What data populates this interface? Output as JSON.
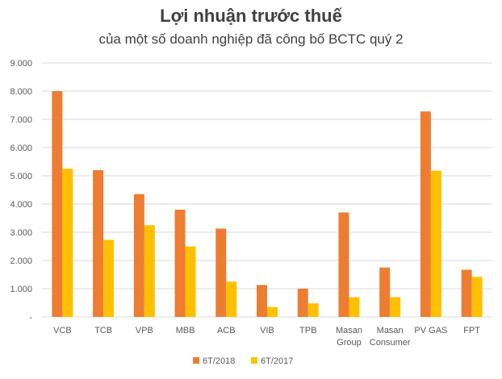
{
  "chart_data": {
    "type": "bar",
    "title": "Lợi nhuận trước thuế",
    "subtitle": "của một số doanh nghiệp đã công bố BCTC quý 2",
    "categories": [
      [
        "VCB"
      ],
      [
        "TCB"
      ],
      [
        "VPB"
      ],
      [
        "MBB"
      ],
      [
        "ACB"
      ],
      [
        "VIB"
      ],
      [
        "TPB"
      ],
      [
        "Masan",
        "Group"
      ],
      [
        "Masan",
        "Consumer"
      ],
      [
        "PV GAS"
      ],
      [
        "FPT"
      ]
    ],
    "series": [
      {
        "name": "6T/2018",
        "color": "#ED7D31",
        "values": [
          8000,
          5200,
          4350,
          3800,
          3130,
          1130,
          1000,
          3700,
          1750,
          7280,
          1670
        ]
      },
      {
        "name": "6T/2017",
        "color": "#FFC000",
        "values": [
          5250,
          2730,
          3250,
          2500,
          1250,
          350,
          480,
          700,
          700,
          5180,
          1420
        ]
      }
    ],
    "ylim": [
      0,
      9000
    ],
    "yticks": [
      {
        "value": 0,
        "label": "-"
      },
      {
        "value": 1000,
        "label": "1.000"
      },
      {
        "value": 2000,
        "label": "2.000"
      },
      {
        "value": 3000,
        "label": "3.000"
      },
      {
        "value": 4000,
        "label": "4.000"
      },
      {
        "value": 5000,
        "label": "5.000"
      },
      {
        "value": 6000,
        "label": "6.000"
      },
      {
        "value": 7000,
        "label": "7.000"
      },
      {
        "value": 8000,
        "label": "8.000"
      },
      {
        "value": 9000,
        "label": "9.000"
      }
    ],
    "grid": true,
    "legend": "bottom-center",
    "gridline_color": "#D9D9D9"
  }
}
